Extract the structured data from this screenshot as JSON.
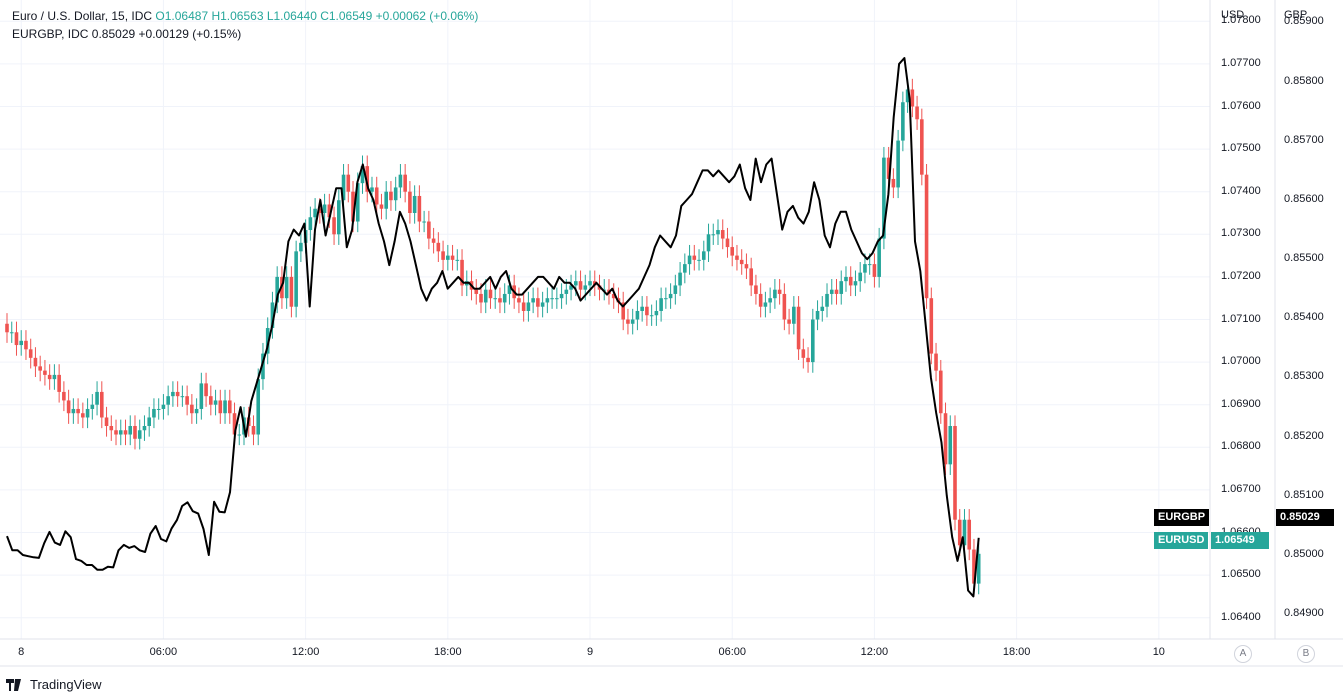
{
  "legend": {
    "line1_name": "Euro / U.S. Dollar, 15, IDC",
    "line1_ohlc": "O1.06487 H1.06563 L1.06440 C1.06549 +0.00062 (+0.06%)",
    "line2": "EURGBP, IDC  0.85029  +0.00129 (+0.15%)"
  },
  "axes": {
    "usd_title": "USD",
    "gbp_title": "GBP",
    "usd_ticks": [
      "1.07800",
      "1.07700",
      "1.07600",
      "1.07500",
      "1.07400",
      "1.07300",
      "1.07200",
      "1.07100",
      "1.07000",
      "1.06900",
      "1.06800",
      "1.06700",
      "1.06600",
      "1.06500",
      "1.06400"
    ],
    "gbp_ticks": [
      "0.85900",
      "0.85800",
      "0.85700",
      "0.85600",
      "0.85500",
      "0.85400",
      "0.85300",
      "0.85200",
      "0.85100",
      "0.85000",
      "0.84900"
    ],
    "x_ticks": [
      "8",
      "06:00",
      "12:00",
      "18:00",
      "9",
      "06:00",
      "12:00",
      "18:00",
      "10"
    ]
  },
  "price_tags": {
    "eurgbp_label": "EURGBP",
    "eurgbp_value": "0.85029",
    "eurusd_label": "EURUSD",
    "eurusd_value": "1.06549"
  },
  "buttons": {
    "a": "A",
    "b": "B"
  },
  "brand": "TradingView",
  "colors": {
    "up": "#26a69a",
    "down": "#ef5350",
    "line": "#000000",
    "grid": "#f0f3fa"
  },
  "chart_data": {
    "type": "line",
    "usd_ylim": [
      1.0635,
      1.0785
    ],
    "gbp_ylim": [
      0.84858,
      0.85938
    ],
    "x_start": "8 00:00",
    "bar_interval": "15m",
    "series": [
      {
        "name": "EURUSD",
        "kind": "candlestick",
        "close": [
          1.0707,
          1.0707,
          1.0704,
          1.0705,
          1.0703,
          1.0701,
          1.0699,
          1.0698,
          1.0697,
          1.0696,
          1.0697,
          1.0693,
          1.0691,
          1.0688,
          1.0689,
          1.0688,
          1.0687,
          1.0689,
          1.069,
          1.0693,
          1.0687,
          1.0685,
          1.0684,
          1.0683,
          1.0684,
          1.0683,
          1.0685,
          1.0682,
          1.0684,
          1.0685,
          1.0687,
          1.0689,
          1.0689,
          1.069,
          1.0692,
          1.0693,
          1.0692,
          1.0692,
          1.069,
          1.0688,
          1.0689,
          1.0695,
          1.0692,
          1.069,
          1.0691,
          1.0688,
          1.0691,
          1.0688,
          1.0683,
          1.0683,
          1.0687,
          1.0685,
          1.0683,
          1.0696,
          1.0702,
          1.0708,
          1.0714,
          1.072,
          1.0715,
          1.072,
          1.0713,
          1.0726,
          1.0728,
          1.0731,
          1.0734,
          1.0736,
          1.0735,
          1.0737,
          1.0734,
          1.073,
          1.0738,
          1.0744,
          1.074,
          1.0733,
          1.0742,
          1.0746,
          1.074,
          1.0741,
          1.0737,
          1.0736,
          1.074,
          1.0738,
          1.0741,
          1.0744,
          1.074,
          1.0735,
          1.0739,
          1.0733,
          1.0733,
          1.0729,
          1.0728,
          1.0726,
          1.0724,
          1.0725,
          1.0724,
          1.0724,
          1.0718,
          1.0719,
          1.0717,
          1.0716,
          1.0714,
          1.0717,
          1.0715,
          1.0715,
          1.0714,
          1.0716,
          1.0718,
          1.0715,
          1.0714,
          1.0712,
          1.0714,
          1.0715,
          1.0713,
          1.0714,
          1.0715,
          1.0715,
          1.0715,
          1.0716,
          1.0717,
          1.0718,
          1.0719,
          1.0717,
          1.0718,
          1.0719,
          1.0718,
          1.0717,
          1.0717,
          1.0716,
          1.0715,
          1.0714,
          1.071,
          1.0709,
          1.071,
          1.0712,
          1.0713,
          1.0711,
          1.0711,
          1.0712,
          1.0715,
          1.0715,
          1.0716,
          1.0718,
          1.0721,
          1.0723,
          1.0725,
          1.0724,
          1.0724,
          1.0726,
          1.073,
          1.073,
          1.0731,
          1.0729,
          1.0727,
          1.0725,
          1.0724,
          1.0723,
          1.0722,
          1.0718,
          1.0716,
          1.0713,
          1.0714,
          1.0715,
          1.0717,
          1.0716,
          1.071,
          1.0709,
          1.0713,
          1.0703,
          1.0701,
          1.07,
          1.071,
          1.0712,
          1.0713,
          1.0716,
          1.0717,
          1.0716,
          1.0719,
          1.072,
          1.0718,
          1.0719,
          1.0721,
          1.0723,
          1.0723,
          1.072,
          1.0729,
          1.0748,
          1.0743,
          1.0741,
          1.0752,
          1.0761,
          1.0764,
          1.076,
          1.0757,
          1.0744,
          1.0715,
          1.0702,
          1.0698,
          1.0688,
          1.0676,
          1.0685,
          1.0663,
          1.0657,
          1.0663,
          1.0656,
          1.0648,
          1.0655
        ],
        "last": 1.06549
      },
      {
        "name": "EURGBP",
        "kind": "line",
        "close": [
          0.85032,
          0.85008,
          0.85008,
          0.85,
          0.84998,
          0.84996,
          0.84995,
          0.8502,
          0.85039,
          0.85021,
          0.85017,
          0.8504,
          0.8503,
          0.84993,
          0.8499,
          0.84983,
          0.84983,
          0.84975,
          0.84975,
          0.8498,
          0.84979,
          0.85008,
          0.85017,
          0.85012,
          0.85015,
          0.85008,
          0.85005,
          0.85036,
          0.85049,
          0.85027,
          0.85023,
          0.85045,
          0.85059,
          0.85083,
          0.85089,
          0.85074,
          0.8507,
          0.85044,
          0.85,
          0.8509,
          0.85073,
          0.85072,
          0.85106,
          0.8521,
          0.8525,
          0.852,
          0.8526,
          0.8529,
          0.8532,
          0.8535,
          0.8539,
          0.8544,
          0.8546,
          0.8553,
          0.8555,
          0.8554,
          0.8556,
          0.8542,
          0.8555,
          0.856,
          0.8554,
          0.8558,
          0.8562,
          0.8562,
          0.8552,
          0.8555,
          0.8563,
          0.8566,
          0.8562,
          0.856,
          0.8556,
          0.8553,
          0.8549,
          0.8553,
          0.8558,
          0.8556,
          0.8553,
          0.8549,
          0.8545,
          0.8543,
          0.8545,
          0.8546,
          0.8548,
          0.8545,
          0.8546,
          0.8547,
          0.8546,
          0.8546,
          0.8545,
          0.8545,
          0.8546,
          0.8547,
          0.8545,
          0.8547,
          0.8548,
          0.8545,
          0.8544,
          0.8544,
          0.8545,
          0.8546,
          0.8547,
          0.8547,
          0.8546,
          0.8545,
          0.8547,
          0.8546,
          0.8546,
          0.8545,
          0.8543,
          0.8544,
          0.8545,
          0.8546,
          0.8545,
          0.8544,
          0.8545,
          0.8543,
          0.8542,
          0.8543,
          0.8544,
          0.8545,
          0.8547,
          0.8549,
          0.8552,
          0.8554,
          0.8553,
          0.8552,
          0.8554,
          0.8559,
          0.856,
          0.8561,
          0.8563,
          0.8565,
          0.8565,
          0.8564,
          0.8565,
          0.8564,
          0.8563,
          0.8564,
          0.8566,
          0.8562,
          0.856,
          0.8567,
          0.8563,
          0.8566,
          0.8567,
          0.8561,
          0.8555,
          0.8558,
          0.8559,
          0.8557,
          0.8556,
          0.8558,
          0.8563,
          0.856,
          0.8554,
          0.8552,
          0.8556,
          0.8558,
          0.8558,
          0.8555,
          0.8553,
          0.8551,
          0.855,
          0.8551,
          0.8553,
          0.8554,
          0.8561,
          0.8574,
          0.8583,
          0.8584,
          0.8577,
          0.8553,
          0.8548,
          0.8539,
          0.853,
          0.8524,
          0.8519,
          0.851,
          0.8503,
          0.8499,
          0.8503,
          0.8494,
          0.8493,
          0.85029
        ]
      }
    ]
  }
}
